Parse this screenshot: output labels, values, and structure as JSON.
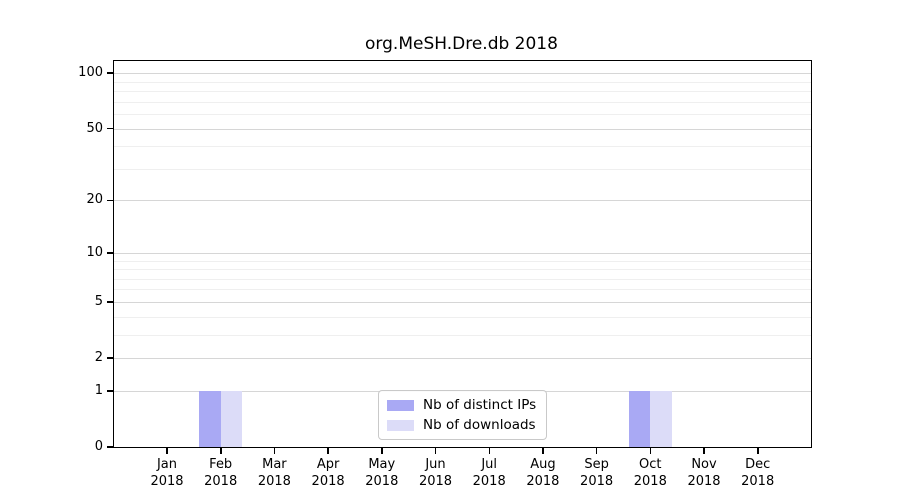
{
  "chart_data": {
    "type": "bar",
    "title": "org.MeSH.Dre.db 2018",
    "categories": [
      "Jan 2018",
      "Feb 2018",
      "Mar 2018",
      "Apr 2018",
      "May 2018",
      "Jun 2018",
      "Jul 2018",
      "Aug 2018",
      "Sep 2018",
      "Oct 2018",
      "Nov 2018",
      "Dec 2018"
    ],
    "month_labels": [
      "Jan",
      "Feb",
      "Mar",
      "Apr",
      "May",
      "Jun",
      "Jul",
      "Aug",
      "Sep",
      "Oct",
      "Nov",
      "Dec"
    ],
    "year_label": "2018",
    "series": [
      {
        "name": "Nb of distinct IPs",
        "color": "#a9a9f4",
        "values": [
          0,
          1,
          0,
          0,
          0,
          0,
          0,
          0,
          0,
          1,
          0,
          0
        ]
      },
      {
        "name": "Nb of downloads",
        "color": "#dcdcf8",
        "values": [
          0,
          1,
          0,
          0,
          0,
          0,
          0,
          0,
          0,
          1,
          0,
          0
        ]
      }
    ],
    "xlabel": "",
    "ylabel": "",
    "y_scale": "log1p",
    "y_ticks": [
      0,
      1,
      2,
      5,
      10,
      20,
      50,
      100
    ],
    "y_minor_gridlines": [
      3,
      4,
      6,
      7,
      8,
      9,
      30,
      40,
      60,
      70,
      80,
      90
    ],
    "ylim": [
      0,
      115
    ],
    "grid": "horizontal",
    "legend_position": "inside-bottom-center",
    "colors": {
      "axis": "#000000",
      "grid_major": "#d6d6d6",
      "grid_minor": "#efefef",
      "background": "#ffffff"
    }
  }
}
